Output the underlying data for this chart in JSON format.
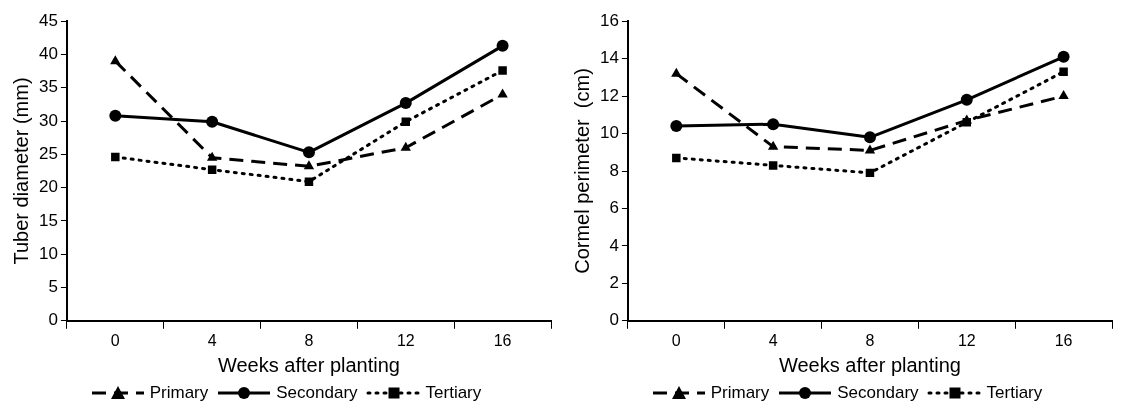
{
  "chart_data": [
    {
      "type": "line",
      "categories": [
        "0",
        "4",
        "8",
        "12",
        "16"
      ],
      "xlabel": "Weeks after planting",
      "ylabel": "Tuber diameter (mm)",
      "ylim": [
        0,
        45
      ],
      "yticks": [
        0,
        5,
        10,
        15,
        20,
        25,
        30,
        35,
        40,
        45
      ],
      "grid": false,
      "legend": "bottom",
      "series": [
        {
          "name": "Primary",
          "color": "#000000",
          "marker": "triangle",
          "line_style": "dashed",
          "values": [
            39,
            24.5,
            23.2,
            26,
            34
          ]
        },
        {
          "name": "Secondary",
          "color": "#000000",
          "marker": "circle",
          "line_style": "solid",
          "values": [
            30.8,
            29.9,
            25.3,
            32.7,
            41.3
          ]
        },
        {
          "name": "Tertiary",
          "color": "#000000",
          "marker": "square",
          "line_style": "dotted",
          "values": [
            24.6,
            22.7,
            20.9,
            29.9,
            37.6
          ]
        }
      ]
    },
    {
      "type": "line",
      "categories": [
        "0",
        "4",
        "8",
        "12",
        "16"
      ],
      "xlabel": "Weeks after planting",
      "ylabel": "Cormel perimeter  (cm)",
      "ylim": [
        0,
        16
      ],
      "yticks": [
        0,
        2,
        4,
        6,
        8,
        10,
        12,
        14,
        16
      ],
      "grid": false,
      "legend": "bottom",
      "series": [
        {
          "name": "Primary",
          "color": "#000000",
          "marker": "triangle",
          "line_style": "dashed",
          "values": [
            13.2,
            9.3,
            9.1,
            10.7,
            12
          ]
        },
        {
          "name": "Secondary",
          "color": "#000000",
          "marker": "circle",
          "line_style": "solid",
          "values": [
            10.4,
            10.5,
            9.8,
            11.8,
            14.1
          ]
        },
        {
          "name": "Tertiary",
          "color": "#000000",
          "marker": "square",
          "line_style": "dotted",
          "values": [
            8.7,
            8.3,
            7.9,
            10.6,
            13.3
          ]
        }
      ]
    }
  ]
}
